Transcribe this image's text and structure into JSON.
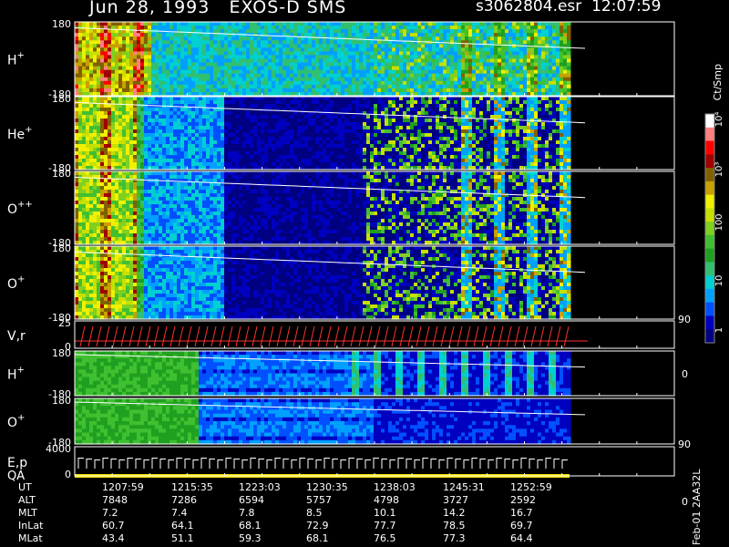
{
  "header": {
    "title": "Jun 28, 1993   EXOS-D SMS",
    "file_info": "s3062804.esr  12:07:59"
  },
  "colorbar": {
    "unit_label": "Ct/Smp",
    "tick_labels": [
      "1",
      "10",
      "100",
      "10³",
      "10⁴"
    ],
    "colors": [
      "#000080",
      "#0000c0",
      "#0050ff",
      "#00a0ff",
      "#00d0d0",
      "#30c070",
      "#20a020",
      "#40c030",
      "#80d020",
      "#c8e000",
      "#f0f000",
      "#c8a000",
      "#806000",
      "#a00000",
      "#ff0000",
      "#ff8080",
      "#ffffff"
    ]
  },
  "panels": [
    {
      "id": "h_plus",
      "label_main": "H",
      "label_sup": "+",
      "ytop": "180",
      "ybot": "-180"
    },
    {
      "id": "he_plus",
      "label_main": "He",
      "label_sup": "+",
      "ytop": "180",
      "ybot": "-180"
    },
    {
      "id": "o_pp",
      "label_main": "O",
      "label_sup": "++",
      "ytop": "180",
      "ybot": "-180"
    },
    {
      "id": "o_plus",
      "label_main": "O",
      "label_sup": "+",
      "ytop": "180",
      "ybot": "-180",
      "right_top": "90"
    },
    {
      "id": "vr",
      "label_main": "V,r",
      "label_sup": "",
      "ytop": "25",
      "ybot": "0",
      "right_bot": "0"
    },
    {
      "id": "h_plus2",
      "label_main": "H",
      "label_sup": "+",
      "ytop": "180",
      "ybot": "-180"
    },
    {
      "id": "o_plus2",
      "label_main": "O",
      "label_sup": "+",
      "ytop": "180",
      "ybot": "-180",
      "right_top": "90"
    },
    {
      "id": "ep",
      "label_main": "E,p",
      "label_sup": "",
      "ytop": "4000",
      "ybot": "0",
      "label2": "QA",
      "right_bot": "0"
    }
  ],
  "footer": {
    "rows": [
      {
        "name": "UT",
        "values": [
          "1207:59",
          "1215:35",
          "1223:03",
          "1230:35",
          "1238:03",
          "1245:31",
          "1252:59"
        ]
      },
      {
        "name": "ALT",
        "values": [
          "7848",
          "7286",
          "6594",
          "5757",
          "4798",
          "3727",
          "2592"
        ]
      },
      {
        "name": "MLT",
        "values": [
          "7.2",
          "7.4",
          "7.8",
          "8.5",
          "10.1",
          "14.2",
          "16.7"
        ]
      },
      {
        "name": "InLat",
        "values": [
          "60.7",
          "64.1",
          "68.1",
          "72.9",
          "77.7",
          "78.5",
          "69.7"
        ]
      },
      {
        "name": "MLat",
        "values": [
          "43.4",
          "51.1",
          "59.3",
          "68.1",
          "76.5",
          "77.3",
          "64.4"
        ]
      }
    ],
    "stamp": "Feb-01 2AA32L"
  },
  "chart_data": {
    "type": "heatmap",
    "title": "Jun 28, 1993   EXOS-D SMS",
    "xlabel": "UT",
    "x_ticks": [
      "1207:59",
      "1215:35",
      "1223:03",
      "1230:35",
      "1238:03",
      "1245:31",
      "1252:59"
    ],
    "colorbar_unit": "Ct/Smp",
    "colorbar_ticks": [
      "1",
      "10",
      "100",
      "10³",
      "10⁴"
    ],
    "panels": [
      "H+",
      "He+",
      "O++",
      "O+",
      "V,r",
      "H+",
      "O+",
      "E,p"
    ],
    "ylims": {
      "H+": [
        -180,
        180
      ],
      "He+": [
        -180,
        180
      ],
      "O++": [
        -180,
        180
      ],
      "O+": [
        -180,
        180
      ],
      "V,r": [
        0,
        25
      ],
      "E,p": [
        0,
        4000
      ]
    }
  }
}
